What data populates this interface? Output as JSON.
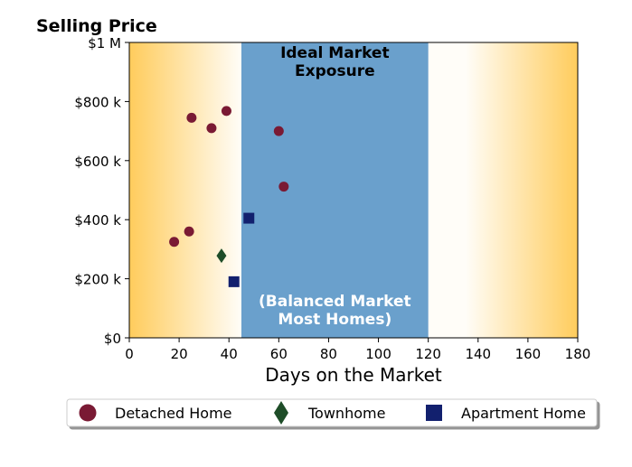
{
  "chart_data": {
    "type": "scatter",
    "title": "Selling Price",
    "xlabel": "Days on the Market",
    "ylabel": "",
    "xlim": [
      0,
      180
    ],
    "ylim": [
      0,
      1000000
    ],
    "x_ticks": [
      0,
      20,
      40,
      60,
      80,
      100,
      120,
      140,
      160,
      180
    ],
    "x_tick_labels": [
      "0",
      "20",
      "40",
      "60",
      "80",
      "100",
      "120",
      "140",
      "160",
      "180"
    ],
    "y_ticks": [
      0,
      200000,
      400000,
      600000,
      800000,
      1000000
    ],
    "y_tick_labels": [
      "$0",
      "$200 k",
      "$400 k",
      "$600 k",
      "$800 k",
      "$1 M"
    ],
    "grid": false,
    "band": {
      "x_range": [
        45,
        120
      ],
      "color": "#6aa0cc",
      "label_top": "Ideal Market\nExposure",
      "label_bottom": "(Balanced Market\nMost Homes)"
    },
    "background_gradient": {
      "edge_color": "#ffcc5c",
      "center_color": "#fffdf8"
    },
    "legend_placement": "bottom",
    "series": [
      {
        "name": "Detached Home",
        "marker": "circle",
        "color": "#7a1a34",
        "points": [
          {
            "x": 18,
            "y": 325000
          },
          {
            "x": 24,
            "y": 360000
          },
          {
            "x": 25,
            "y": 745000
          },
          {
            "x": 33,
            "y": 710000
          },
          {
            "x": 39,
            "y": 768000
          },
          {
            "x": 60,
            "y": 700000
          },
          {
            "x": 62,
            "y": 512000
          }
        ]
      },
      {
        "name": "Townhome",
        "marker": "diamond",
        "color": "#1e4d28",
        "points": [
          {
            "x": 37,
            "y": 278000
          }
        ]
      },
      {
        "name": "Apartment Home",
        "marker": "square",
        "color": "#12206e",
        "points": [
          {
            "x": 42,
            "y": 190000
          },
          {
            "x": 48,
            "y": 405000
          }
        ]
      }
    ]
  }
}
